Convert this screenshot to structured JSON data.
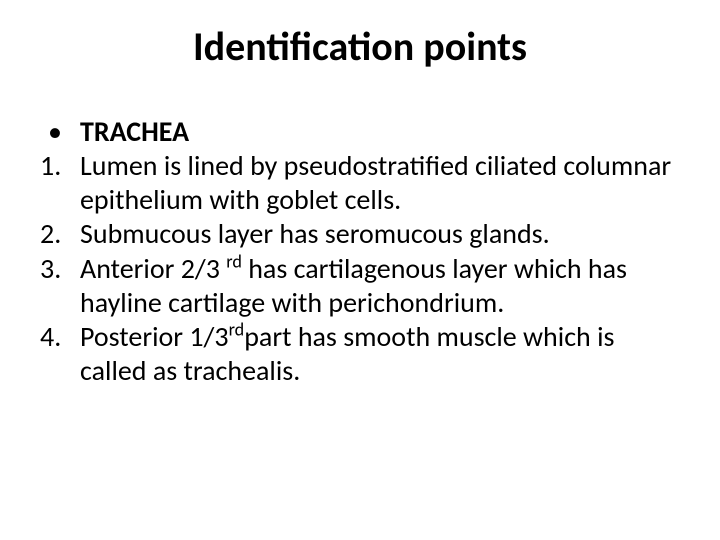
{
  "slide": {
    "title": "Identification points",
    "title_fontsize": 40,
    "title_fontweight": 700,
    "title_color": "#000000",
    "body_fontsize": 28,
    "body_color": "#000000",
    "background_color": "#ffffff",
    "bullet": {
      "marker": "•",
      "text": "TRACHEA",
      "bold": true
    },
    "items": [
      {
        "n": "1.",
        "text_a": "Lumen is lined by pseudostratified ciliated columnar epithelium with goblet cells.",
        "sup": "",
        "text_b": ""
      },
      {
        "n": "2.",
        "text_a": "Submucous layer has seromucous glands.",
        "sup": "",
        "text_b": ""
      },
      {
        "n": "3.",
        "text_a": "Anterior 2/3 ",
        "sup": "rd",
        "text_b": " has cartilagenous layer which has hayline cartilage with perichondrium."
      },
      {
        "n": "4.",
        "text_a": "Posterior 1/3",
        "sup": "rd",
        "text_b": "part  has smooth muscle which is called as trachealis."
      }
    ]
  }
}
